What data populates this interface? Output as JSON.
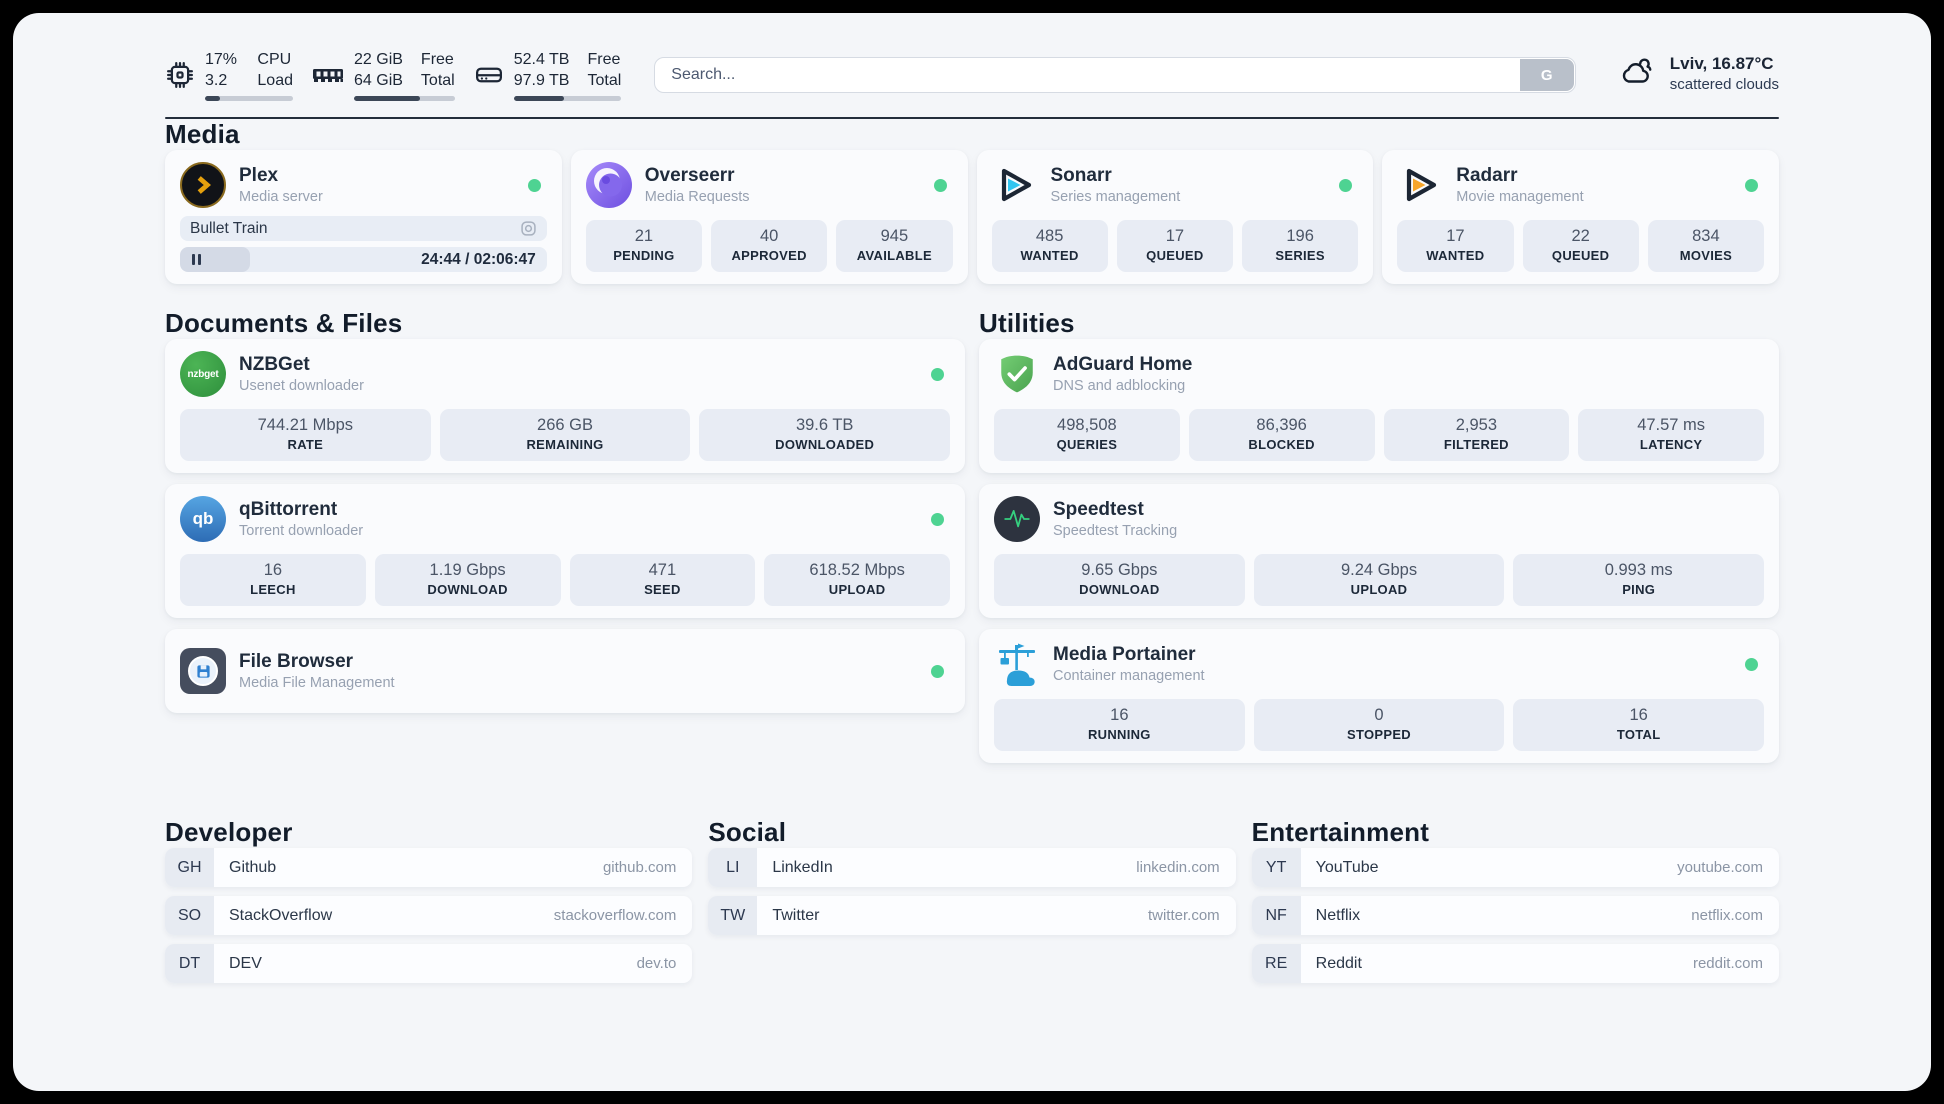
{
  "colors": {
    "status_online": "#4ed392",
    "accent_dark": "#232e3c"
  },
  "header": {
    "cpu": {
      "line1_left": "17%",
      "line2_left": "3.2",
      "line1_right": "CPU",
      "line2_right": "Load",
      "usage_percent": 17
    },
    "memory": {
      "line1_left": "22 GiB",
      "line2_left": "64 GiB",
      "line1_right": "Free",
      "line2_right": "Total",
      "usage_percent": 66
    },
    "disk": {
      "line1_left": "52.4 TB",
      "line2_left": "97.9 TB",
      "line1_right": "Free",
      "line2_right": "Total",
      "usage_percent": 47
    },
    "search": {
      "placeholder": "Search...",
      "button_label": "G"
    },
    "weather": {
      "location_temp": "Lviv, 16.87°C",
      "condition": "scattered clouds"
    }
  },
  "media": {
    "title": "Media",
    "plex": {
      "name": "Plex",
      "subtitle": "Media server",
      "now_playing": "Bullet Train",
      "time": "24:44 / 02:06:47",
      "progress_percent": 19
    },
    "overseerr": {
      "name": "Overseerr",
      "subtitle": "Media Requests",
      "stats": [
        {
          "value": "21",
          "label": "PENDING"
        },
        {
          "value": "40",
          "label": "APPROVED"
        },
        {
          "value": "945",
          "label": "AVAILABLE"
        }
      ]
    },
    "sonarr": {
      "name": "Sonarr",
      "subtitle": "Series management",
      "stats": [
        {
          "value": "485",
          "label": "WANTED"
        },
        {
          "value": "17",
          "label": "QUEUED"
        },
        {
          "value": "196",
          "label": "SERIES"
        }
      ]
    },
    "radarr": {
      "name": "Radarr",
      "subtitle": "Movie management",
      "stats": [
        {
          "value": "17",
          "label": "WANTED"
        },
        {
          "value": "22",
          "label": "QUEUED"
        },
        {
          "value": "834",
          "label": "MOVIES"
        }
      ]
    }
  },
  "documents": {
    "title": "Documents & Files",
    "nzbget": {
      "name": "NZBGet",
      "subtitle": "Usenet downloader",
      "icon_text": "nzbget",
      "stats": [
        {
          "value": "744.21 Mbps",
          "label": "RATE"
        },
        {
          "value": "266 GB",
          "label": "REMAINING"
        },
        {
          "value": "39.6 TB",
          "label": "DOWNLOADED"
        }
      ]
    },
    "qbittorrent": {
      "name": "qBittorrent",
      "subtitle": "Torrent downloader",
      "icon_text": "qb",
      "stats": [
        {
          "value": "16",
          "label": "LEECH"
        },
        {
          "value": "1.19 Gbps",
          "label": "DOWNLOAD"
        },
        {
          "value": "471",
          "label": "SEED"
        },
        {
          "value": "618.52 Mbps",
          "label": "UPLOAD"
        }
      ]
    },
    "filebrowser": {
      "name": "File Browser",
      "subtitle": "Media File Management"
    }
  },
  "utilities": {
    "title": "Utilities",
    "adguard": {
      "name": "AdGuard Home",
      "subtitle": "DNS and adblocking",
      "stats": [
        {
          "value": "498,508",
          "label": "QUERIES"
        },
        {
          "value": "86,396",
          "label": "BLOCKED"
        },
        {
          "value": "2,953",
          "label": "FILTERED"
        },
        {
          "value": "47.57 ms",
          "label": "LATENCY"
        }
      ]
    },
    "speedtest": {
      "name": "Speedtest",
      "subtitle": "Speedtest Tracking",
      "stats": [
        {
          "value": "9.65 Gbps",
          "label": "DOWNLOAD"
        },
        {
          "value": "9.24 Gbps",
          "label": "UPLOAD"
        },
        {
          "value": "0.993 ms",
          "label": "PING"
        }
      ]
    },
    "portainer": {
      "name": "Media Portainer",
      "subtitle": "Container management",
      "stats": [
        {
          "value": "16",
          "label": "RUNNING"
        },
        {
          "value": "0",
          "label": "STOPPED"
        },
        {
          "value": "16",
          "label": "TOTAL"
        }
      ]
    }
  },
  "bookmarks": {
    "developer": {
      "title": "Developer",
      "items": [
        {
          "abbr": "GH",
          "name": "Github",
          "url": "github.com"
        },
        {
          "abbr": "SO",
          "name": "StackOverflow",
          "url": "stackoverflow.com"
        },
        {
          "abbr": "DT",
          "name": "DEV",
          "url": "dev.to"
        }
      ]
    },
    "social": {
      "title": "Social",
      "items": [
        {
          "abbr": "LI",
          "name": "LinkedIn",
          "url": "linkedin.com"
        },
        {
          "abbr": "TW",
          "name": "Twitter",
          "url": "twitter.com"
        }
      ]
    },
    "entertainment": {
      "title": "Entertainment",
      "items": [
        {
          "abbr": "YT",
          "name": "YouTube",
          "url": "youtube.com"
        },
        {
          "abbr": "NF",
          "name": "Netflix",
          "url": "netflix.com"
        },
        {
          "abbr": "RE",
          "name": "Reddit",
          "url": "reddit.com"
        }
      ]
    }
  }
}
